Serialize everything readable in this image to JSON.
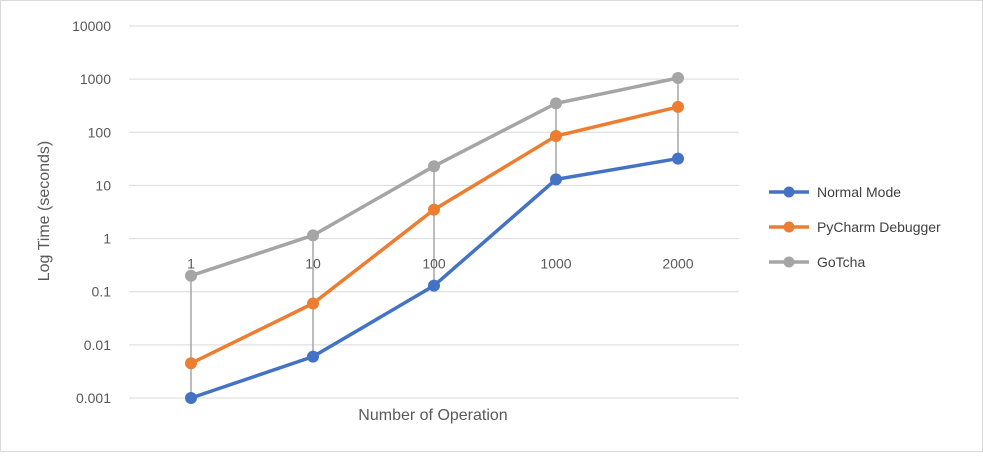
{
  "chart_data": {
    "type": "line",
    "categories": [
      "1",
      "10",
      "100",
      "1000",
      "2000"
    ],
    "series": [
      {
        "name": "Normal Mode",
        "color": "#4472c4",
        "values": [
          0.001,
          0.006,
          0.13,
          13,
          32
        ]
      },
      {
        "name": "PyCharm Debugger",
        "color": "#ed7d31",
        "values": [
          0.0045,
          0.06,
          3.5,
          85,
          300
        ]
      },
      {
        "name": "GoTcha",
        "color": "#a5a5a5",
        "values": [
          0.2,
          1.15,
          23,
          350,
          1050
        ]
      }
    ],
    "xlabel": "Number of Operation",
    "ylabel": "Log Time (seconds)",
    "y_scale": "log",
    "ylim": [
      0.001,
      10000
    ],
    "y_ticks": [
      "0.001",
      "0.01",
      "0.1",
      "1",
      "10",
      "100",
      "1000",
      "10000"
    ],
    "grid": true,
    "drop_lines": true,
    "legend_position": "right"
  }
}
